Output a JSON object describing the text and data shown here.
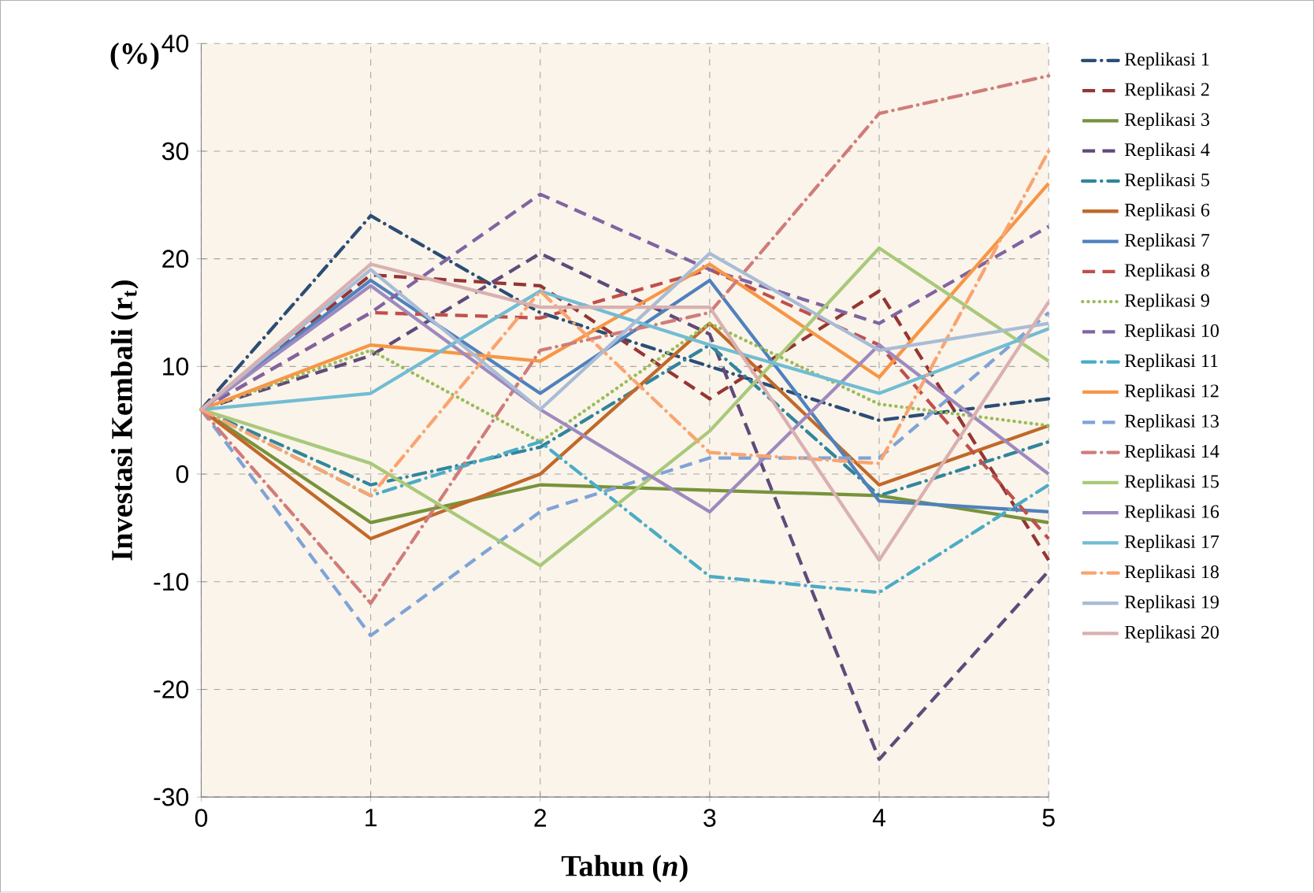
{
  "chart_data": {
    "type": "line",
    "xlabel": "Tahun (*n*)",
    "ylabel": "Investasi Kembali (r$_{t}$)",
    "annotations": [
      "(%)"
    ],
    "x": [
      0,
      1,
      2,
      3,
      4,
      5
    ],
    "xlim": [
      0,
      5
    ],
    "xticks": [
      0,
      1,
      2,
      3,
      4,
      5
    ],
    "ylim": [
      -30,
      40
    ],
    "yticks": [
      -30,
      -20,
      -10,
      0,
      10,
      20,
      30,
      40
    ],
    "grid": true,
    "legend": "right",
    "marker": "none",
    "series": [
      {
        "name": "Replikasi 1",
        "color": "#2c4d75",
        "line_style": "dashdot",
        "values": [
          6,
          24,
          15,
          10,
          5,
          7
        ]
      },
      {
        "name": "Replikasi 2",
        "color": "#943634",
        "line_style": "dashed",
        "values": [
          6,
          18.5,
          17.5,
          7,
          17,
          -8
        ]
      },
      {
        "name": "Replikasi 3",
        "color": "#77933c",
        "line_style": "solid",
        "values": [
          6,
          -4.5,
          -1,
          -1.5,
          -2,
          -4.5
        ]
      },
      {
        "name": "Replikasi 4",
        "color": "#604a7b",
        "line_style": "dashed",
        "values": [
          6,
          11,
          20.5,
          13,
          -26.5,
          -9
        ]
      },
      {
        "name": "Replikasi 5",
        "color": "#31859c",
        "line_style": "dashdot",
        "values": [
          6,
          -1,
          2.5,
          12,
          -2,
          3
        ]
      },
      {
        "name": "Replikasi 6",
        "color": "#c0692a",
        "line_style": "solid",
        "values": [
          6,
          -6,
          0,
          14,
          -1,
          4.5
        ]
      },
      {
        "name": "Replikasi 7",
        "color": "#4f81bd",
        "line_style": "solid",
        "values": [
          6,
          18,
          7.5,
          18,
          -2.5,
          -3.5
        ]
      },
      {
        "name": "Replikasi 8",
        "color": "#c0504d",
        "line_style": "dashed",
        "values": [
          6,
          15,
          14.5,
          19,
          12,
          -6
        ]
      },
      {
        "name": "Replikasi 9",
        "color": "#9bbb59",
        "line_style": "dotted",
        "values": [
          6,
          11.5,
          3,
          14,
          6.5,
          4.5
        ]
      },
      {
        "name": "Replikasi 10",
        "color": "#8064a2",
        "line_style": "dashed",
        "values": [
          6,
          15,
          26,
          19,
          14,
          23
        ]
      },
      {
        "name": "Replikasi 11",
        "color": "#4bacc6",
        "line_style": "dashdot",
        "values": [
          6,
          -2,
          3,
          -9.5,
          -11,
          -1
        ]
      },
      {
        "name": "Replikasi 12",
        "color": "#f79646",
        "line_style": "solid",
        "values": [
          6,
          12,
          10.5,
          19.5,
          9,
          27
        ]
      },
      {
        "name": "Replikasi 13",
        "color": "#7fa3d6",
        "line_style": "dashed",
        "values": [
          6,
          -15,
          -3.5,
          1.5,
          1.5,
          15
        ]
      },
      {
        "name": "Replikasi 14",
        "color": "#d07c7a",
        "line_style": "dashdot",
        "values": [
          6,
          -12,
          11.5,
          15,
          33.5,
          37
        ]
      },
      {
        "name": "Replikasi 15",
        "color": "#a9c97a",
        "line_style": "solid",
        "values": [
          6,
          1,
          -8.5,
          4,
          21,
          10.5
        ]
      },
      {
        "name": "Replikasi 16",
        "color": "#9e8abf",
        "line_style": "solid",
        "values": [
          6,
          17.5,
          6,
          -3.5,
          12,
          0
        ]
      },
      {
        "name": "Replikasi 17",
        "color": "#72bcd4",
        "line_style": "solid",
        "values": [
          6,
          7.5,
          17,
          12,
          7.5,
          13.5
        ]
      },
      {
        "name": "Replikasi 18",
        "color": "#f9a470",
        "line_style": "dashdot",
        "values": [
          6,
          -2,
          17,
          2,
          1,
          30
        ]
      },
      {
        "name": "Replikasi 19",
        "color": "#a9bcd6",
        "line_style": "solid",
        "values": [
          6,
          19,
          6,
          20.5,
          11.5,
          14
        ]
      },
      {
        "name": "Replikasi 20",
        "color": "#d9b0b0",
        "line_style": "solid",
        "values": [
          6,
          19.5,
          15.5,
          15.5,
          -8,
          16
        ]
      }
    ]
  }
}
